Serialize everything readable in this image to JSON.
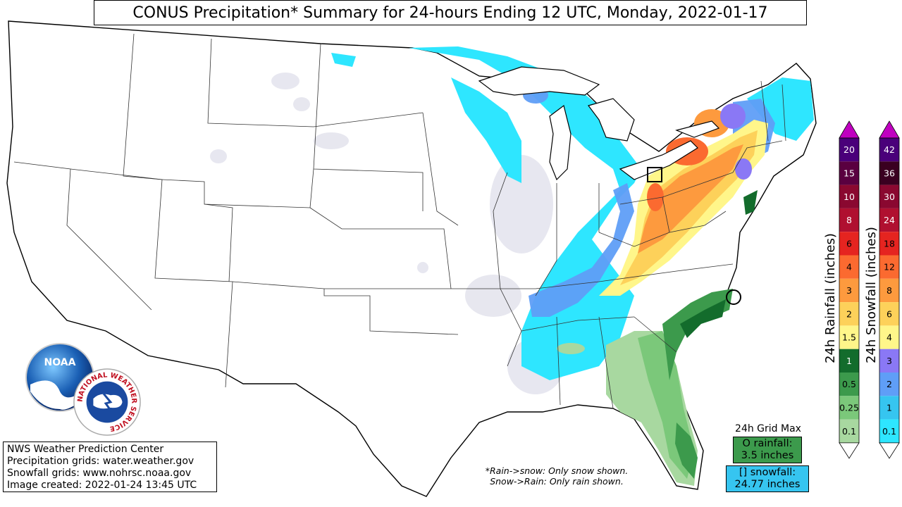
{
  "title": "CONUS Precipitation* Summary for 24-hours Ending 12 UTC, Monday, 2022-01-17",
  "info": {
    "line1": "NWS Weather Prediction Center",
    "line2": "Precipitation grids: water.weather.gov",
    "line3": "Snowfall grids: www.nohrsc.noaa.gov",
    "line4": "Image created: 2022-01-24 13:45 UTC"
  },
  "note": {
    "line1": "*Rain->snow: Only snow shown.",
    "line2": "Snow->Rain: Only rain shown."
  },
  "grid_max": {
    "title": "24h Grid Max",
    "rain_line1": "O rainfall:",
    "rain_line2": "3.5 inches",
    "snow_line1": "[] snowfall:",
    "snow_line2": "24.77 inches"
  },
  "rain_legend": {
    "label": "24h Rainfall (inches)",
    "levels": [
      {
        "value": "0.1",
        "color": "#a8d8a0"
      },
      {
        "value": "0.25",
        "color": "#7bc87a"
      },
      {
        "value": "0.5",
        "color": "#3c9a4c"
      },
      {
        "value": "1",
        "color": "#136c2c"
      },
      {
        "value": "1.5",
        "color": "#fff68a"
      },
      {
        "value": "2",
        "color": "#fdd15a"
      },
      {
        "value": "3",
        "color": "#fd9a3e"
      },
      {
        "value": "4",
        "color": "#fb6a30"
      },
      {
        "value": "6",
        "color": "#e52420"
      },
      {
        "value": "8",
        "color": "#b01030"
      },
      {
        "value": "10",
        "color": "#8a0830"
      },
      {
        "value": "15",
        "color": "#5a0040"
      },
      {
        "value": "20",
        "color": "#4a007a"
      }
    ],
    "arrow_top_color": "#c000c0"
  },
  "snow_legend": {
    "label": "24h Snowfall (inches)",
    "levels": [
      {
        "value": "0.1",
        "color": "#2ee6ff"
      },
      {
        "value": "1",
        "color": "#36c5f0"
      },
      {
        "value": "2",
        "color": "#5f9ef7"
      },
      {
        "value": "3",
        "color": "#8a78f5"
      },
      {
        "value": "4",
        "color": "#fff68a"
      },
      {
        "value": "6",
        "color": "#fdd15a"
      },
      {
        "value": "8",
        "color": "#fd9a3e"
      },
      {
        "value": "12",
        "color": "#fb6a30"
      },
      {
        "value": "18",
        "color": "#e52420"
      },
      {
        "value": "24",
        "color": "#b01030"
      },
      {
        "value": "30",
        "color": "#8a0830"
      },
      {
        "value": "36",
        "color": "#3a0020"
      },
      {
        "value": "42",
        "color": "#4a007a"
      }
    ],
    "arrow_top_color": "#c000c0"
  },
  "logos": {
    "noaa": "NOAA",
    "nws": "NATIONAL WEATHER SERVICE"
  }
}
